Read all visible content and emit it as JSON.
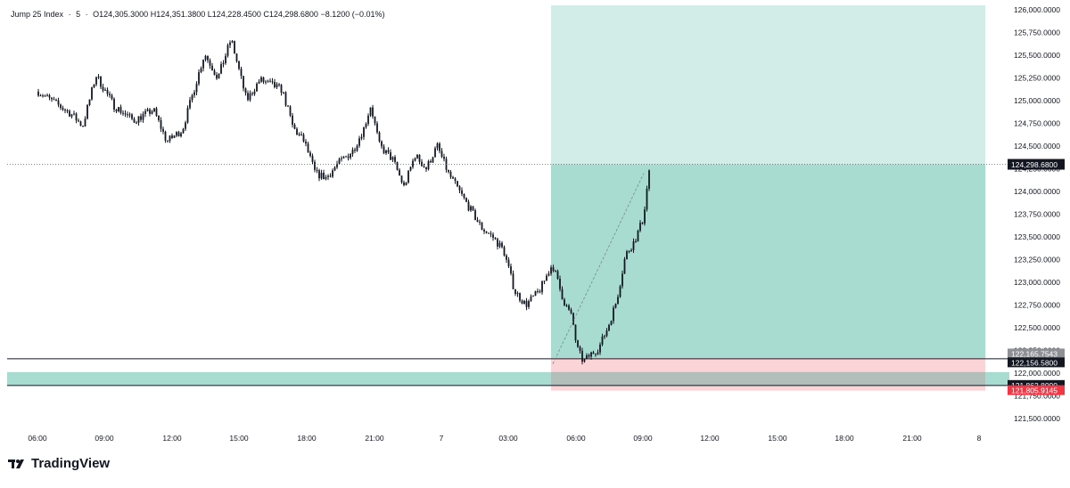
{
  "header": {
    "symbol": "Jump 25 Index",
    "interval": "5",
    "open": "O124,305.3000",
    "high": "H124,351.3800",
    "low": "L124,228.4500",
    "close": "C124,298.6800",
    "change": "−8.1200 (−0.01%)"
  },
  "brand": {
    "name": "TradingView"
  },
  "colors": {
    "candle": "#131722",
    "profit_fill": "#a8dcd1",
    "profit_fill_light": "#d2ede7",
    "loss_fill": "#fad4d6",
    "stop_label": "#f23645",
    "grey_label": "#9ea0a6",
    "teal_band": "#a8dcd1"
  },
  "chart_data": {
    "type": "candlestick",
    "symbol": "Jump 25 Index",
    "timeframe": "5",
    "y_axis": {
      "ylim": [
        121400,
        126050
      ],
      "ticks": [
        "126,000.0000",
        "125,750.0000",
        "125,500.0000",
        "125,250.0000",
        "125,000.0000",
        "124,750.0000",
        "124,500.0000",
        "124,250.0000",
        "124,000.0000",
        "123,750.0000",
        "123,500.0000",
        "123,250.0000",
        "123,000.0000",
        "122,750.0000",
        "122,500.0000",
        "122,250.0000",
        "122,000.0000",
        "121,750.0000",
        "121,500.0000"
      ]
    },
    "x_axis": {
      "ticks": [
        "06:00",
        "09:00",
        "12:00",
        "15:00",
        "18:00",
        "21:00",
        "7",
        "03:00",
        "06:00",
        "09:00",
        "12:00",
        "15:00",
        "18:00",
        "21:00",
        "8"
      ]
    },
    "price_path": [
      [
        0,
        125100
      ],
      [
        1.5,
        124850
      ],
      [
        2,
        124720
      ],
      [
        2.6,
        125280
      ],
      [
        3.4,
        124950
      ],
      [
        4.3,
        124780
      ],
      [
        5.2,
        124900
      ],
      [
        5.8,
        124550
      ],
      [
        6.5,
        124680
      ],
      [
        7.5,
        125520
      ],
      [
        8.1,
        125250
      ],
      [
        8.7,
        125680
      ],
      [
        9.4,
        125000
      ],
      [
        10.0,
        125230
      ],
      [
        11.0,
        125120
      ],
      [
        11.5,
        124700
      ],
      [
        12.0,
        124550
      ],
      [
        12.5,
        124200
      ],
      [
        13.0,
        124150
      ],
      [
        13.5,
        124300
      ],
      [
        14.2,
        124450
      ],
      [
        14.7,
        124700
      ],
      [
        15.0,
        124950
      ],
      [
        15.4,
        124500
      ],
      [
        16.0,
        124350
      ],
      [
        16.5,
        124050
      ],
      [
        17.0,
        124400
      ],
      [
        17.5,
        124250
      ],
      [
        18.0,
        124500
      ],
      [
        18.5,
        124200
      ],
      [
        19.0,
        124000
      ],
      [
        19.5,
        123800
      ],
      [
        20.0,
        123600
      ],
      [
        20.5,
        123500
      ],
      [
        21.0,
        123350
      ],
      [
        21.5,
        122900
      ],
      [
        22.0,
        122750
      ],
      [
        22.6,
        122900
      ],
      [
        23.2,
        123200
      ],
      [
        23.7,
        122800
      ],
      [
        24.1,
        122600
      ],
      [
        24.3,
        122280
      ],
      [
        24.6,
        122120
      ],
      [
        24.9,
        122200
      ],
      [
        25.3,
        122280
      ],
      [
        25.7,
        122500
      ],
      [
        26.1,
        122800
      ],
      [
        26.5,
        123300
      ],
      [
        26.9,
        123450
      ],
      [
        27.3,
        123700
      ],
      [
        27.6,
        124300
      ],
      [
        28.0,
        124400
      ],
      [
        28.5,
        124450
      ],
      [
        29.0,
        124350
      ],
      [
        29.2,
        124299
      ]
    ],
    "last_price": "124,298.6800",
    "price_labels": [
      "122,165.7543",
      "122,156.5800",
      "121,862.8000",
      "121,805.9145"
    ],
    "position": {
      "type": "long",
      "entry": 122165.7543,
      "stop": 121805.9145,
      "target": 126000,
      "current": 124298.68
    },
    "lines": {
      "horizontal_level": 122156.58,
      "zone_high": 122010,
      "zone_low": 121862.8
    }
  }
}
